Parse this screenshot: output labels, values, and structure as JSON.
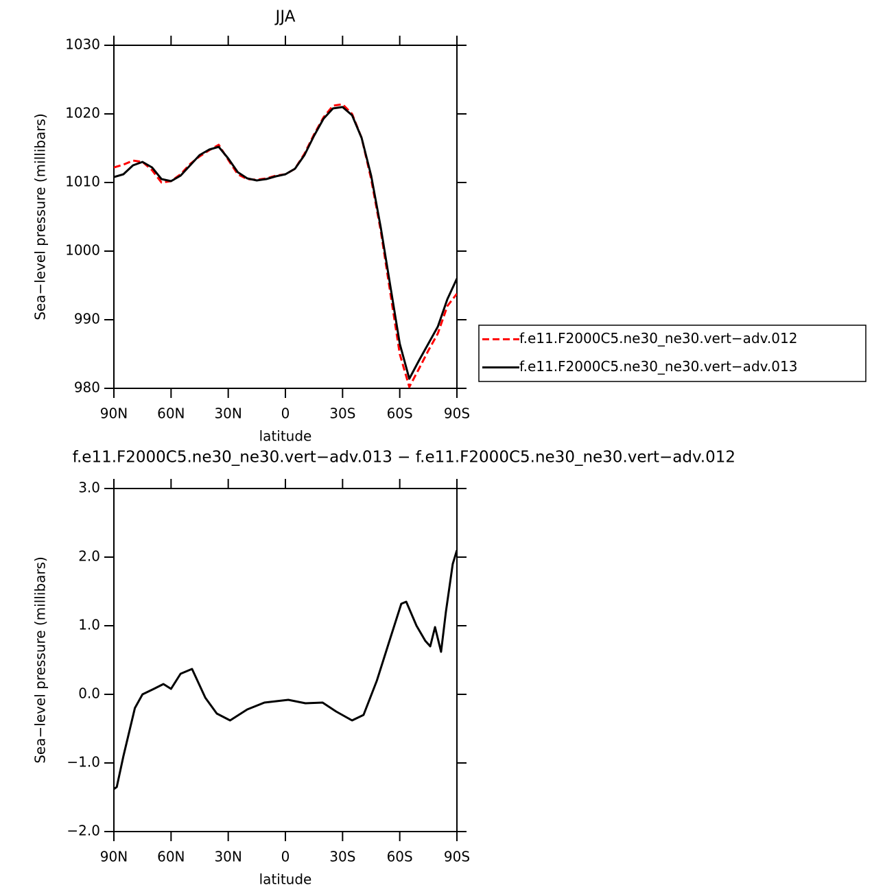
{
  "chart_data": [
    {
      "type": "line",
      "title": "JJA",
      "xlabel": "latitude",
      "ylabel": "Sea−level pressure (millibars)",
      "x": [
        90,
        85,
        80,
        75,
        70,
        65,
        60,
        55,
        50,
        45,
        40,
        35,
        30,
        25,
        20,
        15,
        10,
        5,
        0,
        -5,
        -10,
        -15,
        -20,
        -25,
        -30,
        -35,
        -40,
        -45,
        -50,
        -55,
        -60,
        -65,
        -70,
        -75,
        -80,
        -85,
        -90
      ],
      "series": [
        {
          "name": "f.e11.F2000C5.ne30_ne30.vert−adv.012",
          "color": "#ff0000",
          "dashed": true,
          "values": [
            1012.2,
            1012.6,
            1013.2,
            1013.0,
            1011.8,
            1010.0,
            1010.2,
            1011.2,
            1012.7,
            1013.8,
            1014.7,
            1015.5,
            1013.3,
            1011.2,
            1010.5,
            1010.4,
            1010.6,
            1011.0,
            1011.2,
            1012.0,
            1014.2,
            1017.0,
            1019.5,
            1021.2,
            1021.4,
            1020.0,
            1016.5,
            1010.5,
            1003.0,
            994.0,
            985.0,
            980.2,
            982.8,
            985.5,
            988.0,
            992.0,
            993.8
          ]
        },
        {
          "name": "f.e11.F2000C5.ne30_ne30.vert−adv.013",
          "color": "#000000",
          "dashed": false,
          "values": [
            1010.8,
            1011.2,
            1012.5,
            1013.0,
            1012.2,
            1010.5,
            1010.2,
            1011.0,
            1012.5,
            1014.0,
            1014.8,
            1015.2,
            1013.5,
            1011.5,
            1010.6,
            1010.3,
            1010.5,
            1010.9,
            1011.2,
            1012.0,
            1014.0,
            1016.8,
            1019.3,
            1020.8,
            1021.0,
            1019.8,
            1016.5,
            1011.0,
            1003.5,
            995.0,
            986.5,
            981.4,
            984.0,
            986.5,
            989.0,
            993.0,
            996.0
          ]
        }
      ],
      "xlim": [
        90,
        -90
      ],
      "xticks": [
        {
          "value": 90,
          "label": "90N"
        },
        {
          "value": 60,
          "label": "60N"
        },
        {
          "value": 30,
          "label": "30N"
        },
        0,
        {
          "value": -30,
          "label": "30S"
        },
        {
          "value": -60,
          "label": "60S"
        },
        {
          "value": -90,
          "label": "90S"
        }
      ],
      "ylim": [
        980,
        1030
      ],
      "yticks": [
        980,
        990,
        1000,
        1010,
        1020,
        1030
      ],
      "legend": "right"
    },
    {
      "type": "line",
      "title": "f.e11.F2000C5.ne30_ne30.vert−adv.013 − f.e11.F2000C5.ne30_ne30.vert−adv.012",
      "xlabel": "latitude",
      "ylabel": "Sea−level pressure (millibars)",
      "x": [
        90,
        88.5,
        85,
        79,
        75,
        69,
        64,
        60,
        55,
        49,
        42,
        36,
        29,
        20,
        11,
        -1.5,
        -10.5,
        -19.5,
        -26.6,
        -35,
        -41,
        -48,
        -55.4,
        -60.8,
        -63.4,
        -68.8,
        -73.4,
        -76,
        -78.5,
        -81.7,
        -84.2,
        -87.8,
        -90
      ],
      "series": [
        {
          "color": "#000000",
          "dashed": false,
          "values": [
            -1.38,
            -1.35,
            -0.9,
            -0.2,
            0.0,
            0.08,
            0.15,
            0.08,
            0.3,
            0.37,
            -0.05,
            -0.28,
            -0.38,
            -0.22,
            -0.12,
            -0.08,
            -0.13,
            -0.12,
            -0.25,
            -0.38,
            -0.3,
            0.2,
            0.85,
            1.32,
            1.35,
            1.0,
            0.78,
            0.7,
            0.98,
            0.62,
            1.2,
            1.9,
            2.1
          ]
        }
      ],
      "xlim": [
        90,
        -90
      ],
      "xticks": [
        {
          "value": 90,
          "label": "90N"
        },
        {
          "value": 60,
          "label": "60N"
        },
        {
          "value": 30,
          "label": "30N"
        },
        0,
        {
          "value": -30,
          "label": "30S"
        },
        {
          "value": -60,
          "label": "60S"
        },
        {
          "value": -90,
          "label": "90S"
        }
      ],
      "ylim": [
        -2,
        3
      ],
      "yticks": [
        {
          "value": -2,
          "label": "−2.0"
        },
        {
          "value": -1,
          "label": "−1.0"
        },
        {
          "value": 0,
          "label": "0.0"
        },
        {
          "value": 1,
          "label": "1.0"
        },
        {
          "value": 2,
          "label": "2.0"
        },
        {
          "value": 3,
          "label": "3.0"
        }
      ]
    }
  ]
}
